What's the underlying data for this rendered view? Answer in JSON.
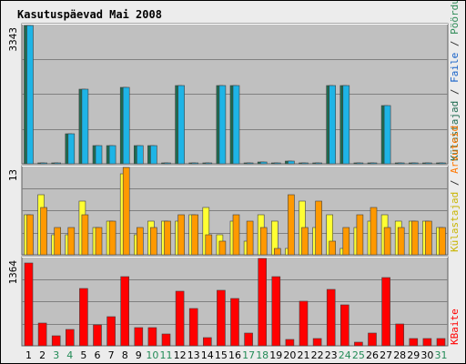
{
  "chart_data": {
    "type": "bar",
    "title": "Kasutuspäevad Mai 2008",
    "x": [
      "1",
      "2",
      "3",
      "4",
      "5",
      "6",
      "7",
      "8",
      "9",
      "10",
      "11",
      "12",
      "13",
      "14",
      "15",
      "16",
      "17",
      "18",
      "19",
      "20",
      "21",
      "22",
      "23",
      "24",
      "25",
      "26",
      "27",
      "28",
      "29",
      "30",
      "31"
    ],
    "weekend_days": [
      "3",
      "4",
      "10",
      "11",
      "17",
      "18",
      "24",
      "25",
      "31"
    ],
    "grid": true,
    "colors": {
      "plot_bg": "#c0c0c0",
      "grid": "#808080",
      "page_bg": "#ececec",
      "title": "#0000cc",
      "weekday_label": "#000000",
      "weekend_label": "#228b57",
      "label_separator": "#333333"
    },
    "panels": [
      {
        "name": "top",
        "max_label": "3343",
        "ylim": [
          0,
          3343
        ],
        "series": [
          {
            "name": "Külastajad",
            "color": "#1e6b50",
            "label_color": "#1e6b50",
            "values": [
              3343,
              30,
              15,
              720,
              1800,
              450,
              450,
              1850,
              450,
              450,
              20,
              1900,
              20,
              20,
              1900,
              1900,
              20,
              40,
              30,
              60,
              15,
              20,
              1900,
              1900,
              20,
              20,
              1400,
              20,
              20,
              20,
              20
            ]
          },
          {
            "name": "Faile",
            "color": "#1eb4e6",
            "label_color": "#1560c8",
            "values": [
              3343,
              30,
              15,
              720,
              1800,
              450,
              450,
              1850,
              450,
              450,
              20,
              1900,
              20,
              20,
              1900,
              1900,
              20,
              40,
              30,
              60,
              15,
              20,
              1900,
              1900,
              20,
              20,
              1400,
              20,
              20,
              20,
              20
            ]
          },
          {
            "name": "Pöördumisi",
            "label_color": "#2e8b57"
          }
        ]
      },
      {
        "name": "middle",
        "max_label": "13",
        "ylim": [
          0,
          13
        ],
        "series": [
          {
            "name": "Külastajad",
            "color": "#ffff33",
            "label_color": "#c8b400",
            "values": [
              6,
              9,
              3,
              3,
              8,
              4,
              5,
              12,
              3,
              5,
              5,
              5,
              6,
              7,
              3,
              5,
              2,
              6,
              5,
              1,
              8,
              4,
              6,
              1,
              4,
              5,
              6,
              5,
              5,
              5,
              4
            ]
          },
          {
            "name": "Arvuteid",
            "color": "#ff9900",
            "label_color": "#ff7700",
            "values": [
              6,
              7,
              4,
              4,
              6,
              4,
              5,
              13,
              4,
              4,
              5,
              6,
              6,
              3,
              2,
              6,
              5,
              4,
              1,
              9,
              4,
              8,
              2,
              4,
              6,
              7,
              4,
              4,
              5,
              5,
              4
            ]
          }
        ]
      },
      {
        "name": "bottom",
        "max_label": "1364",
        "ylim": [
          0,
          1364
        ],
        "series": [
          {
            "name": "KBaite",
            "color": "#ff0000",
            "label_color": "#ff0000",
            "values": [
              1300,
              350,
              150,
              250,
              900,
              320,
              460,
              1080,
              280,
              280,
              180,
              850,
              580,
              130,
              860,
              740,
              200,
              1364,
              1080,
              100,
              700,
              120,
              880,
              640,
              60,
              200,
              1060,
              340,
              120,
              120,
              120
            ]
          }
        ]
      }
    ]
  }
}
